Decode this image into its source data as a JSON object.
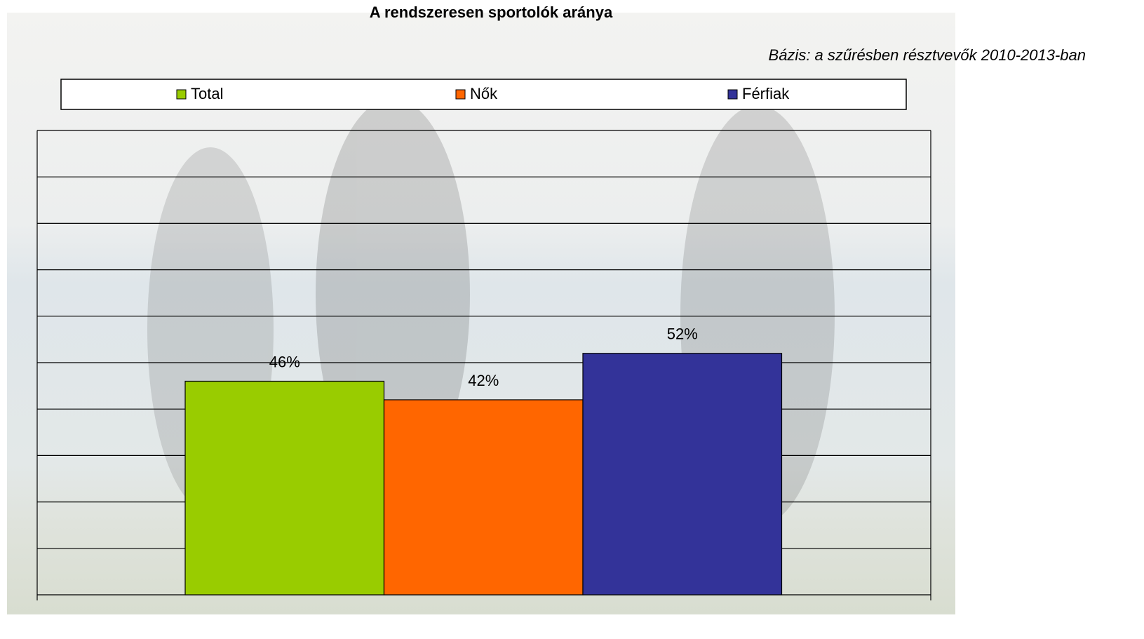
{
  "chart_data": {
    "type": "bar",
    "title": "A rendszeresen sportolók aránya",
    "subtitle": "Bázis: a szűrésben résztvevők 2010-2013-ban",
    "series": [
      {
        "name": "Total",
        "color": "#99cc00",
        "values": [
          46
        ],
        "value_labels": [
          "46%"
        ]
      },
      {
        "name": "Nők",
        "color": "#ff6600",
        "values": [
          42
        ],
        "value_labels": [
          "42%"
        ]
      },
      {
        "name": "Férfiak",
        "color": "#333399",
        "values": [
          52
        ],
        "value_labels": [
          "52%"
        ]
      }
    ],
    "ylim": [
      0,
      100
    ],
    "yticks": [
      0,
      10,
      20,
      30,
      40,
      50,
      60,
      70,
      80,
      90,
      100
    ],
    "grid": true,
    "legend": "top"
  }
}
